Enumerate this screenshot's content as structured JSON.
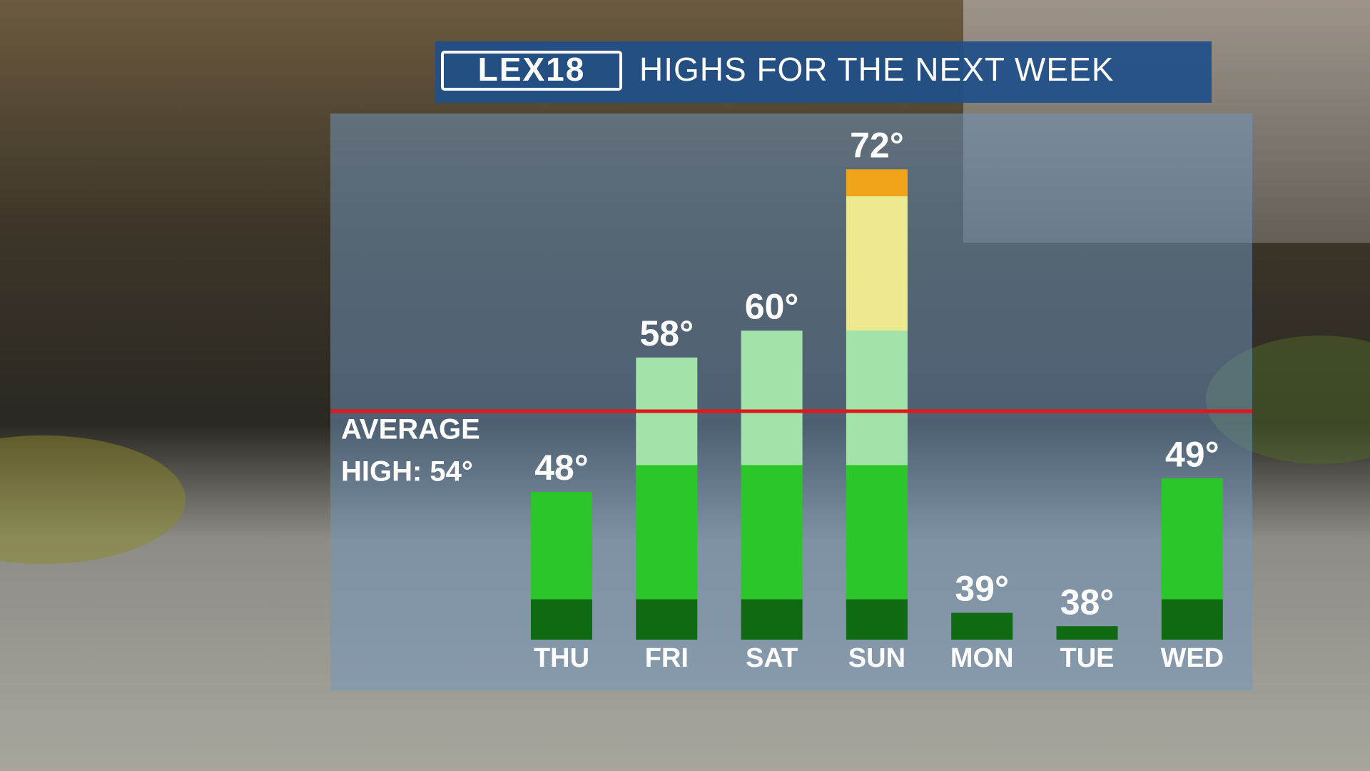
{
  "chart_data": {
    "type": "bar",
    "logo": "LEX18",
    "title": "HIGHS FOR THE NEXT WEEK",
    "categories": [
      "THU",
      "FRI",
      "SAT",
      "SUN",
      "MON",
      "TUE",
      "WED"
    ],
    "values": [
      48,
      58,
      60,
      72,
      39,
      38,
      49
    ],
    "value_labels": [
      "48°",
      "58°",
      "60°",
      "72°",
      "39°",
      "38°",
      "49°"
    ],
    "ylim": [
      37,
      76
    ],
    "color_bands": [
      {
        "upto": 40,
        "color": "#0f6a12"
      },
      {
        "upto": 50,
        "color": "#2cc62a"
      },
      {
        "upto": 60,
        "color": "#a2e3aa"
      },
      {
        "upto": 70,
        "color": "#ece98e"
      },
      {
        "color": "#f0a41a"
      }
    ],
    "average_line": {
      "value": 54,
      "color": "#e3161b",
      "label_lines": [
        "AVERAGE",
        "HIGH: 54°"
      ]
    }
  }
}
